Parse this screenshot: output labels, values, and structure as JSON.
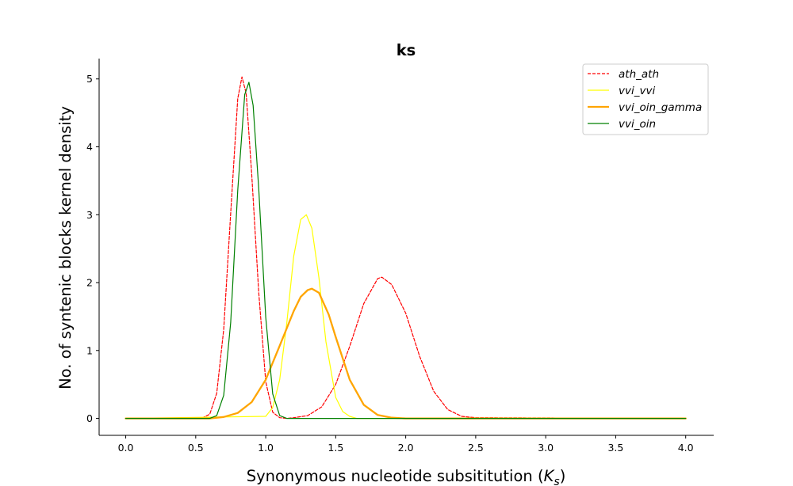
{
  "chart_data": {
    "type": "line",
    "title": "ks",
    "xlabel": "Synonymous nucleotide subsititution",
    "xlabel_symbol": "K",
    "xlabel_subscript": "s",
    "ylabel": "No. of syntenic blocks kernel density",
    "xlim": [
      -0.19,
      4.2
    ],
    "ylim": [
      -0.25,
      5.3
    ],
    "xticks": [
      0.0,
      0.5,
      1.0,
      1.5,
      2.0,
      2.5,
      3.0,
      3.5,
      4.0
    ],
    "xtick_labels": [
      "0.0",
      "0.5",
      "1.0",
      "1.5",
      "2.0",
      "2.5",
      "3.0",
      "3.5",
      "4.0"
    ],
    "yticks": [
      0,
      1,
      2,
      3,
      4,
      5
    ],
    "ytick_labels": [
      "0",
      "1",
      "2",
      "3",
      "4",
      "5"
    ],
    "grid": false,
    "legend_position": "top-right",
    "series": [
      {
        "name": "ath_ath",
        "color": "#ff0000",
        "style": "dashed",
        "width": 1.2,
        "x": [
          0.0,
          0.5,
          0.55,
          0.6,
          0.65,
          0.7,
          0.75,
          0.8,
          0.83,
          0.86,
          0.9,
          0.95,
          1.0,
          1.05,
          1.1,
          1.15,
          1.2,
          1.3,
          1.4,
          1.5,
          1.6,
          1.7,
          1.8,
          1.83,
          1.9,
          2.0,
          2.1,
          2.2,
          2.3,
          2.4,
          2.5,
          4.0
        ],
        "y": [
          0.0,
          0.0,
          0.01,
          0.06,
          0.37,
          1.31,
          3.02,
          4.71,
          5.03,
          4.79,
          3.6,
          1.85,
          0.54,
          0.09,
          0.01,
          0.0,
          0.01,
          0.04,
          0.17,
          0.5,
          1.06,
          1.69,
          2.06,
          2.08,
          1.97,
          1.55,
          0.91,
          0.4,
          0.13,
          0.03,
          0.01,
          0.0
        ]
      },
      {
        "name": "vvi_vvi",
        "color": "#ffff00",
        "style": "solid",
        "width": 1.2,
        "x": [
          0.0,
          1.0,
          1.05,
          1.1,
          1.15,
          1.2,
          1.25,
          1.29,
          1.33,
          1.38,
          1.43,
          1.5,
          1.55,
          1.6,
          1.65,
          1.7,
          1.8,
          4.0
        ],
        "y": [
          0.0,
          0.03,
          0.16,
          0.57,
          1.4,
          2.39,
          2.93,
          3.0,
          2.8,
          2.07,
          1.13,
          0.31,
          0.1,
          0.03,
          0.0,
          0.0,
          0.0,
          0.0
        ]
      },
      {
        "name": "vvi_oin_gamma",
        "color": "#ffa500",
        "style": "solid",
        "width": 2.3,
        "x": [
          0.0,
          0.6,
          0.7,
          0.8,
          0.9,
          1.0,
          1.1,
          1.2,
          1.25,
          1.3,
          1.33,
          1.38,
          1.45,
          1.5,
          1.6,
          1.7,
          1.8,
          1.9,
          2.0,
          2.1,
          4.0
        ],
        "y": [
          0.0,
          0.0,
          0.02,
          0.08,
          0.24,
          0.57,
          1.07,
          1.58,
          1.79,
          1.89,
          1.91,
          1.85,
          1.53,
          1.2,
          0.57,
          0.2,
          0.05,
          0.01,
          0.0,
          0.0,
          0.0
        ]
      },
      {
        "name": "vvi_oin",
        "color": "#008000",
        "style": "solid",
        "width": 1.2,
        "x": [
          0.0,
          0.6,
          0.65,
          0.7,
          0.75,
          0.8,
          0.85,
          0.88,
          0.91,
          0.95,
          1.0,
          1.05,
          1.1,
          1.15,
          1.2,
          4.0
        ],
        "y": [
          0.0,
          0.0,
          0.04,
          0.34,
          1.41,
          3.36,
          4.77,
          4.95,
          4.61,
          3.38,
          1.49,
          0.36,
          0.04,
          0.0,
          0.0,
          0.0
        ]
      }
    ]
  }
}
